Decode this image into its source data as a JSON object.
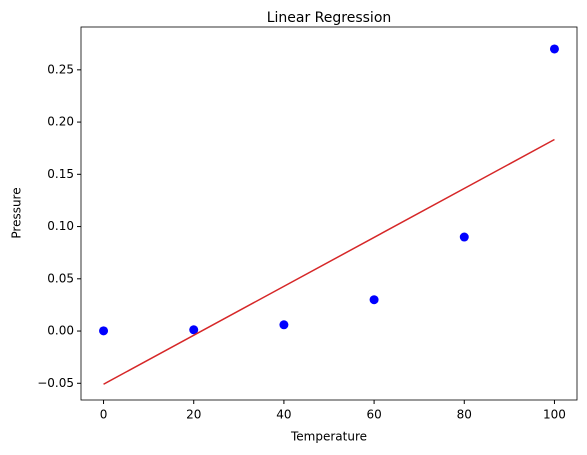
{
  "chart_data": {
    "type": "scatter",
    "title": "Linear Regression",
    "x_label": "Temperature",
    "y_label": "Pressure",
    "x": [
      0,
      20,
      40,
      60,
      80,
      100
    ],
    "values": [
      0.0002,
      0.0012,
      0.006,
      0.03,
      0.09,
      0.27
    ],
    "color": "#0000ff",
    "fit": {
      "x": [
        0,
        100
      ],
      "values": [
        -0.0509,
        0.1833
      ],
      "color": "#d62728"
    },
    "xlim": [
      -5,
      105
    ],
    "ylim": [
      -0.066,
      0.291
    ],
    "xticks": [
      0,
      20,
      40,
      60,
      80,
      100
    ],
    "yticks": [
      {
        "value": -0.05,
        "label": "−0.05"
      },
      {
        "value": 0,
        "label": "0.00"
      },
      {
        "value": 0.05,
        "label": "0.05"
      },
      {
        "value": 0.1,
        "label": "0.10"
      },
      {
        "value": 0.15,
        "label": "0.15"
      },
      {
        "value": 0.2,
        "label": "0.20"
      },
      {
        "value": 0.25,
        "label": "0.25"
      }
    ],
    "grid": false
  }
}
